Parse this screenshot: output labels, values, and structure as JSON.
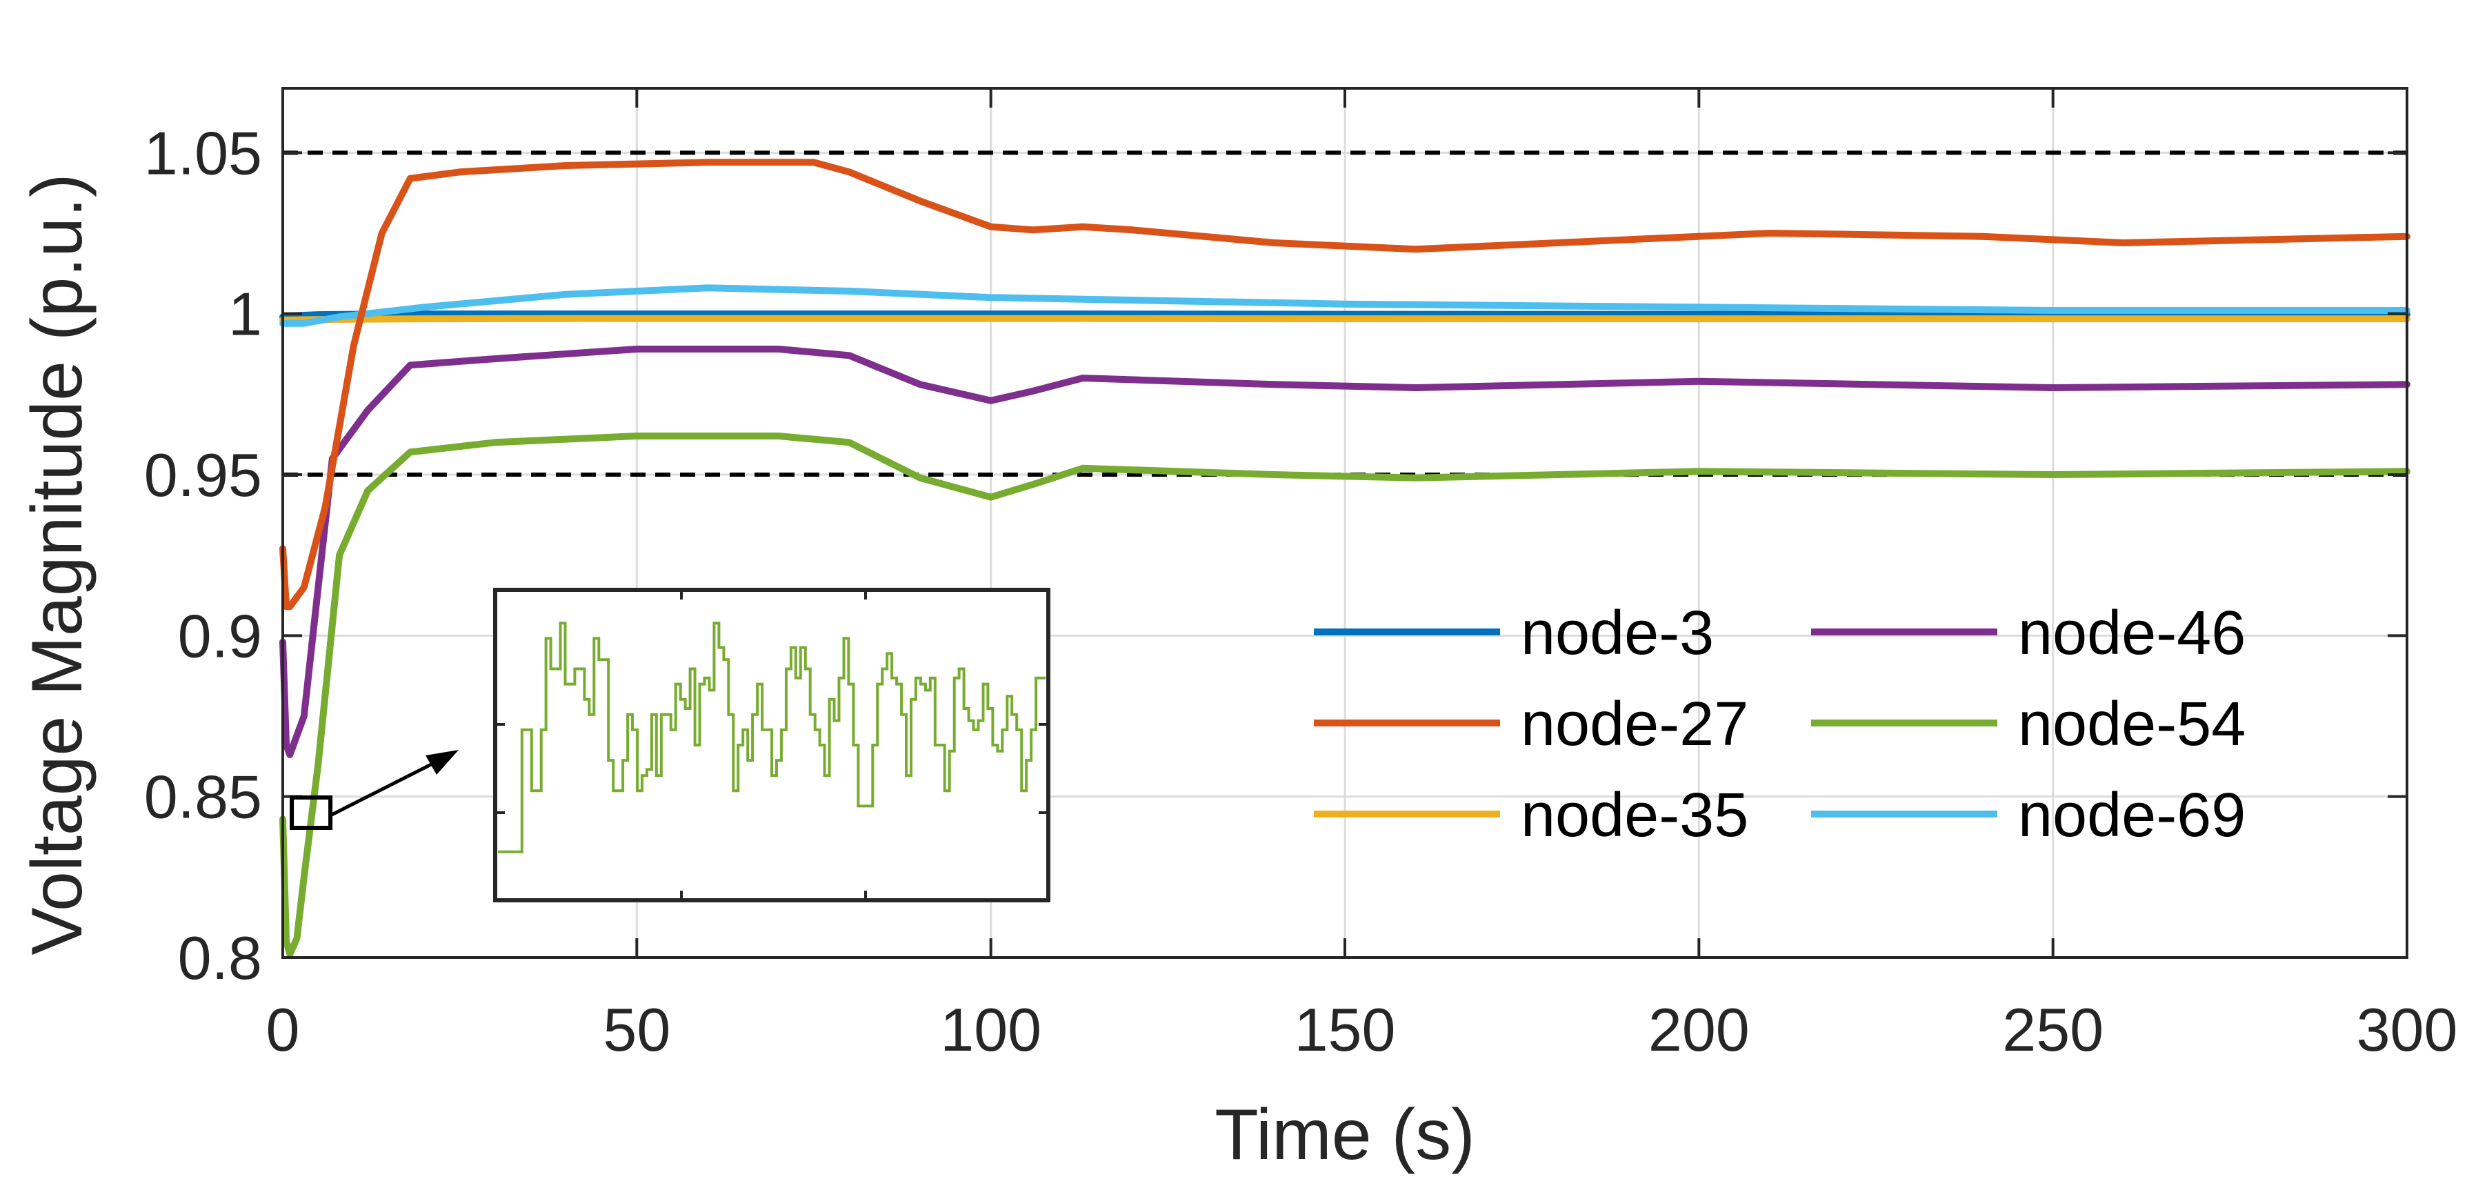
{
  "chart_data": {
    "type": "line",
    "title": "",
    "xlabel": "Time (s)",
    "ylabel": "Voltage Magnitude (p.u.)",
    "xlim": [
      0,
      300
    ],
    "ylim": [
      0.8,
      1.07
    ],
    "xticks": [
      "0",
      "50",
      "100",
      "150",
      "200",
      "250",
      "300"
    ],
    "yticks": [
      "0.8",
      "0.85",
      "0.9",
      "0.95",
      "1",
      "1.05"
    ],
    "grid": true,
    "legend_position": "lower-right",
    "reference_lines": [
      0.95,
      1.05
    ],
    "series": [
      {
        "name": "node-3",
        "color": "#0072BD",
        "x": [
          0,
          1,
          3,
          5,
          10,
          20,
          50,
          100,
          150,
          200,
          250,
          300
        ],
        "y": [
          0.999,
          0.9993,
          0.9995,
          0.9997,
          0.9998,
          0.9999,
          0.9999,
          0.9999,
          0.9998,
          0.9998,
          0.9998,
          0.9998
        ]
      },
      {
        "name": "node-27",
        "color": "#D95319",
        "x": [
          0,
          0.5,
          1,
          3,
          6,
          10,
          14,
          18,
          25,
          40,
          60,
          75,
          80,
          90,
          100,
          106,
          113,
          120,
          140,
          160,
          180,
          210,
          240,
          260,
          300
        ],
        "y": [
          0.927,
          0.909,
          0.909,
          0.915,
          0.94,
          0.99,
          1.025,
          1.042,
          1.044,
          1.046,
          1.047,
          1.047,
          1.044,
          1.035,
          1.027,
          1.026,
          1.027,
          1.026,
          1.022,
          1.02,
          1.022,
          1.025,
          1.024,
          1.022,
          1.024
        ]
      },
      {
        "name": "node-35",
        "color": "#EDB120",
        "x": [
          0,
          5,
          20,
          50,
          100,
          150,
          200,
          250,
          300
        ],
        "y": [
          0.998,
          0.9982,
          0.9984,
          0.9985,
          0.9985,
          0.9984,
          0.9984,
          0.9984,
          0.9984
        ]
      },
      {
        "name": "node-46",
        "color": "#7E2F8E",
        "x": [
          0,
          0.5,
          1,
          3,
          7,
          12,
          18,
          30,
          50,
          70,
          80,
          90,
          100,
          106,
          113,
          140,
          160,
          200,
          250,
          300
        ],
        "y": [
          0.898,
          0.866,
          0.863,
          0.875,
          0.955,
          0.97,
          0.984,
          0.986,
          0.989,
          0.989,
          0.987,
          0.978,
          0.973,
          0.976,
          0.98,
          0.978,
          0.977,
          0.979,
          0.977,
          0.978
        ]
      },
      {
        "name": "node-54",
        "color": "#77AC30",
        "x": [
          0,
          0.5,
          1,
          2,
          3,
          5,
          8,
          12,
          18,
          30,
          50,
          70,
          80,
          90,
          100,
          106,
          113,
          140,
          160,
          200,
          250,
          300
        ],
        "y": [
          0.843,
          0.805,
          0.801,
          0.806,
          0.825,
          0.86,
          0.925,
          0.945,
          0.957,
          0.96,
          0.962,
          0.962,
          0.96,
          0.949,
          0.943,
          0.947,
          0.952,
          0.95,
          0.949,
          0.951,
          0.95,
          0.951
        ]
      },
      {
        "name": "node-69",
        "color": "#4DBEEE",
        "x": [
          0,
          3,
          8,
          20,
          40,
          60,
          80,
          100,
          150,
          200,
          250,
          300
        ],
        "y": [
          0.997,
          0.997,
          0.999,
          1.002,
          1.006,
          1.008,
          1.007,
          1.005,
          1.003,
          1.002,
          1.001,
          1.001
        ]
      }
    ],
    "inset": {
      "description": "zoomed view of node-54 near t=5 s",
      "marker_time": 4,
      "marker_value": 0.845,
      "color": "#77AC30",
      "levels": [
        0.15,
        0.15,
        0.15,
        0.15,
        0.15,
        0.55,
        0.55,
        0.35,
        0.35,
        0.55,
        0.85,
        0.75,
        0.75,
        0.9,
        0.7,
        0.7,
        0.75,
        0.75,
        0.65,
        0.6,
        0.85,
        0.78,
        0.78,
        0.45,
        0.35,
        0.35,
        0.45,
        0.6,
        0.55,
        0.35,
        0.4,
        0.42,
        0.6,
        0.4,
        0.6,
        0.6,
        0.55,
        0.7,
        0.65,
        0.62,
        0.75,
        0.5,
        0.7,
        0.72,
        0.68,
        0.9,
        0.82,
        0.78,
        0.6,
        0.35,
        0.5,
        0.55,
        0.45,
        0.6,
        0.7,
        0.55,
        0.55,
        0.4,
        0.45,
        0.55,
        0.75,
        0.82,
        0.72,
        0.82,
        0.75,
        0.6,
        0.55,
        0.5,
        0.4,
        0.65,
        0.58,
        0.72,
        0.85,
        0.7,
        0.5,
        0.3,
        0.3,
        0.3,
        0.5,
        0.7,
        0.75,
        0.8,
        0.72,
        0.7,
        0.6,
        0.4,
        0.65,
        0.72,
        0.7,
        0.68,
        0.72,
        0.5,
        0.5,
        0.35,
        0.48,
        0.72,
        0.75,
        0.62,
        0.58,
        0.55,
        0.58,
        0.7,
        0.62,
        0.5,
        0.48,
        0.55,
        0.66,
        0.6,
        0.55,
        0.35,
        0.45,
        0.55,
        0.72,
        0.72
      ]
    }
  }
}
